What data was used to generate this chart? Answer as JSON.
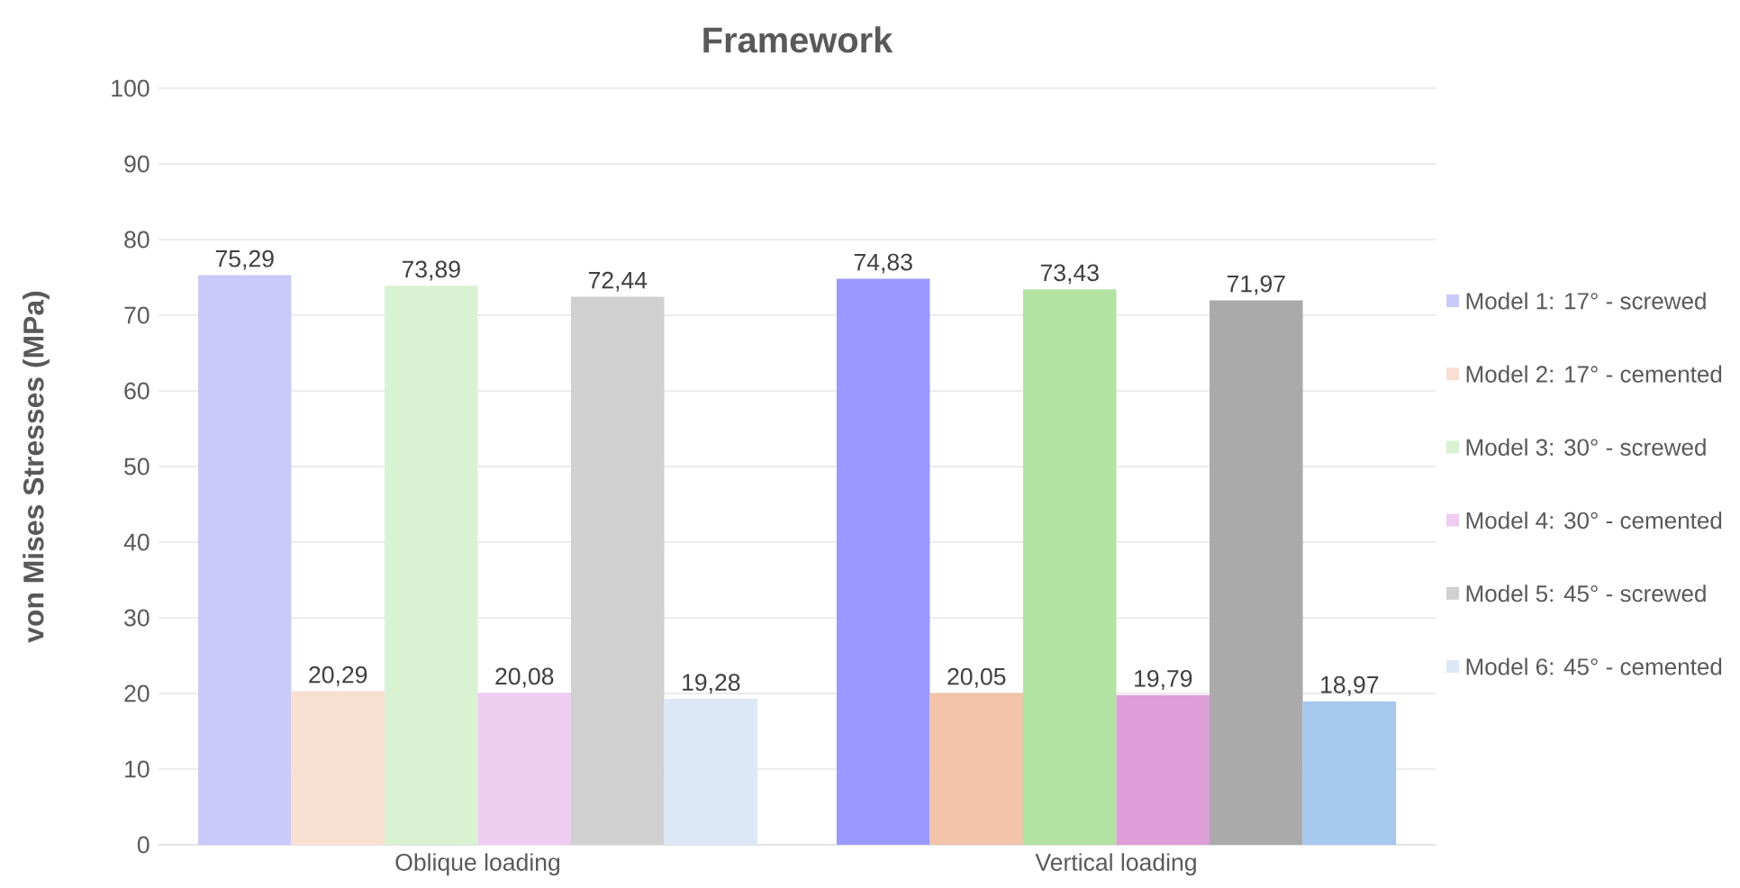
{
  "chart_data": {
    "type": "bar",
    "title": "Framework",
    "ylabel": "von Mises Stresses (MPa)",
    "categories": [
      "Oblique loading",
      "Vertical loading"
    ],
    "series": [
      {
        "name": "Model 1: 17° - screwed",
        "color": "#c9c9fb",
        "colors": [
          "#c9c9fb",
          "#9999ff"
        ],
        "values": [
          75.29,
          74.83
        ],
        "value_labels": [
          "75,29",
          "74,83"
        ]
      },
      {
        "name": "Model 2: 17° - cemented",
        "color": "#f9dfd2",
        "colors": [
          "#f9dfd2",
          "#f3c4aa"
        ],
        "values": [
          20.29,
          20.05
        ],
        "value_labels": [
          "20,29",
          "20,05"
        ]
      },
      {
        "name": "Model 3: 30° - screwed",
        "color": "#d9f3d2",
        "colors": [
          "#d9f3d2",
          "#b3e3a3"
        ],
        "values": [
          73.89,
          73.43
        ],
        "value_labels": [
          "73,89",
          "73,43"
        ]
      },
      {
        "name": "Model 4: 30° - cemented",
        "color": "#efcdf0",
        "colors": [
          "#efcdf0",
          "#e09ed9"
        ],
        "values": [
          20.08,
          19.79
        ],
        "value_labels": [
          "20,08",
          "19,79"
        ]
      },
      {
        "name": "Model 5: 45° - screwed",
        "color": "#d0d0d0",
        "colors": [
          "#d0d0d0",
          "#aaaaaa"
        ],
        "values": [
          72.44,
          71.97
        ],
        "value_labels": [
          "72,44",
          "71,97"
        ]
      },
      {
        "name": "Model 6: 45° - cemented",
        "color": "#dce8f6",
        "colors": [
          "#dce8f6",
          "#a6c8ec"
        ],
        "values": [
          19.28,
          18.97
        ],
        "value_labels": [
          "19,28",
          "18,97"
        ]
      }
    ],
    "ylim": [
      0,
      100
    ],
    "yticks": [
      0,
      10,
      20,
      30,
      40,
      50,
      60,
      70,
      80,
      90,
      100
    ],
    "grid": "y",
    "legend": "right"
  }
}
